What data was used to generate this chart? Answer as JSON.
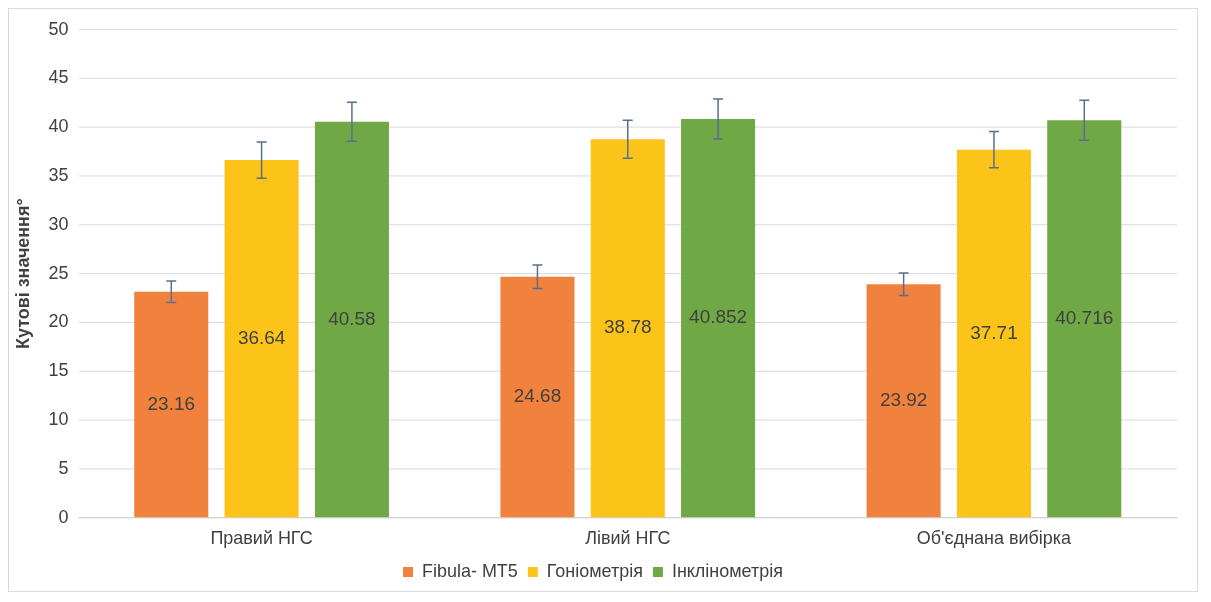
{
  "chart_data": {
    "type": "bar",
    "ylabel": "Кутові значення°",
    "categories": [
      "Правий НГС",
      "Лівий НГС",
      "Об'єднана вибірка"
    ],
    "series": [
      {
        "name": "Fibula- MT5",
        "color": "#f0823e",
        "values": [
          23.16,
          24.68,
          23.92
        ],
        "errors": [
          1.1,
          1.2,
          1.15
        ]
      },
      {
        "name": "Гоніометрія",
        "color": "#fcc419",
        "values": [
          36.64,
          38.78,
          37.71
        ],
        "errors": [
          1.85,
          1.95,
          1.85
        ]
      },
      {
        "name": "Інклінометрія",
        "color": "#6fa845",
        "values": [
          40.58,
          40.852,
          40.716
        ],
        "errors": [
          2,
          2.05,
          2.05
        ]
      }
    ],
    "ylim": [
      0,
      50
    ],
    "yticks": [
      0,
      5,
      10,
      15,
      20,
      25,
      30,
      35,
      40,
      45,
      50
    ],
    "grid": "y",
    "legend": "bottom",
    "data_labels": true
  }
}
